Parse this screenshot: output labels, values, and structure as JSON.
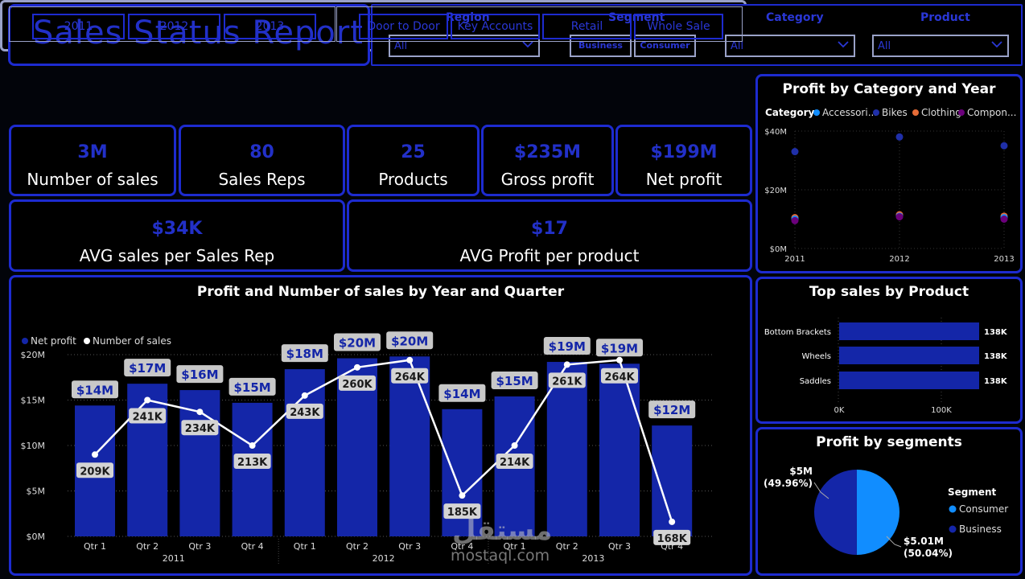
{
  "title": "Sales  Status Report",
  "filters": {
    "region": {
      "label": "Region",
      "value": "All"
    },
    "segment": {
      "label": "Segment",
      "options": [
        "Business",
        "Consumer"
      ]
    },
    "category": {
      "label": "Category",
      "value": "All"
    },
    "product": {
      "label": "Product",
      "value": "All"
    }
  },
  "years": [
    "2011",
    "2012",
    "2013"
  ],
  "channels": [
    "Door to Door",
    "Key Accounts",
    "Retail",
    "Whole Sale"
  ],
  "kpis": [
    {
      "value": "3M",
      "label": "Number of sales"
    },
    {
      "value": "80",
      "label": "Sales Reps"
    },
    {
      "value": "25",
      "label": "Products"
    },
    {
      "value": "$235M",
      "label": "Gross profit"
    },
    {
      "value": "$199M",
      "label": "Net profit"
    },
    {
      "value": "$34K",
      "label": "AVG sales per Sales Rep"
    },
    {
      "value": "$17",
      "label": "AVG Profit per product"
    }
  ],
  "colors": {
    "accent": "#1d2bd0",
    "bar": "#1426a8",
    "line": "#ffffff",
    "text_blue": "#2230c8"
  },
  "watermark": {
    "arabic": "مستقل",
    "latin": "mostaql.com"
  },
  "chart_data": [
    {
      "type": "bar",
      "title": "Profit and Number of sales by Year and Quarter",
      "legend": [
        "Net profit",
        "Number of sales"
      ],
      "legend_position": "top-left",
      "categories": [
        "Qtr 1",
        "Qtr 2",
        "Qtr 3",
        "Qtr 4",
        "Qtr 1",
        "Qtr 2",
        "Qtr 3",
        "Qtr 4",
        "Qtr 1",
        "Qtr 2",
        "Qtr 3",
        "Qtr 4"
      ],
      "groups": [
        {
          "name": "2011",
          "count": 4
        },
        {
          "name": "2012",
          "count": 4
        },
        {
          "name": "2013",
          "count": 4
        }
      ],
      "series": [
        {
          "name": "Net profit",
          "values": [
            14.4,
            16.8,
            16.1,
            14.7,
            18.4,
            19.6,
            19.8,
            14,
            15.4,
            19.2,
            19,
            12.2
          ],
          "labels": [
            "$14M",
            "$17M",
            "$16M",
            "$15M",
            "$18M",
            "$20M",
            "$20M",
            "$14M",
            "$15M",
            "$19M",
            "$19M",
            "$12M"
          ]
        },
        {
          "name": "Number of sales",
          "values": [
            209,
            241,
            234,
            213,
            243,
            260,
            264,
            185,
            214,
            261,
            264,
            168
          ],
          "labels": [
            "209K",
            "241K",
            "234K",
            "213K",
            "243K",
            "260K",
            "264K",
            "185K",
            "214K",
            "261K",
            "264K",
            "168K"
          ],
          "line_values_m": [
            9.0,
            15.0,
            13.7,
            10.0,
            15.5,
            18.6,
            19.4,
            4.5,
            10.0,
            18.9,
            19.4,
            1.6
          ]
        }
      ],
      "yticks": [
        "$0M",
        "$5M",
        "$10M",
        "$15M",
        "$20M"
      ],
      "ylim": [
        0,
        22
      ]
    },
    {
      "type": "scatter",
      "title": "Profit by Category and Year",
      "legend_title": "Category",
      "legend": [
        {
          "name": "Accessori...",
          "color": "#118dff"
        },
        {
          "name": "Bikes",
          "color": "#1f2fa8"
        },
        {
          "name": "Clothing",
          "color": "#e66c37"
        },
        {
          "name": "Compon...",
          "color": "#6b007b"
        }
      ],
      "x": [
        "2011",
        "2012",
        "2013"
      ],
      "yticks": [
        "$0M",
        "$20M",
        "$40M"
      ],
      "ylim": [
        0,
        40
      ],
      "points": [
        {
          "series": "Bikes",
          "values": [
            33,
            38,
            35
          ]
        },
        {
          "series": "Clothing",
          "values": [
            10.5,
            11.5,
            11
          ]
        },
        {
          "series": "Accessori...",
          "values": [
            10,
            11,
            10.5
          ]
        },
        {
          "series": "Compon...",
          "values": [
            9.5,
            10.8,
            10
          ]
        }
      ]
    },
    {
      "type": "bar",
      "title": "Top sales by Product",
      "orientation": "horizontal",
      "categories": [
        "Bottom Brackets",
        "Wheels",
        "Saddles"
      ],
      "values": [
        138,
        138,
        138
      ],
      "labels": [
        "138K",
        "138K",
        "138K"
      ],
      "xticks": [
        "0K",
        "100K"
      ],
      "xlim": [
        0,
        160
      ]
    },
    {
      "type": "pie",
      "title": "Profit by segments",
      "legend_title": "Segment",
      "slices": [
        {
          "name": "Consumer",
          "value": 50.04,
          "label": "$5.01M",
          "pct": "(50.04%)",
          "color": "#118dff"
        },
        {
          "name": "Business",
          "value": 49.96,
          "label": "$5M",
          "pct": "(49.96%)",
          "color": "#1426a8"
        }
      ]
    }
  ]
}
